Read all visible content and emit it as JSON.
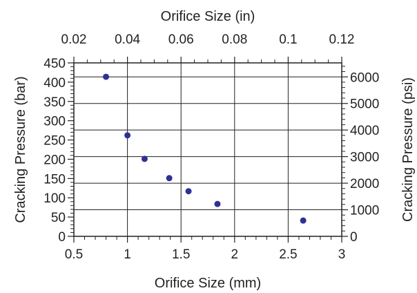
{
  "chart_data": {
    "type": "scatter",
    "title": "",
    "xlabel": "Orifice Size (mm)",
    "ylabel": "Cracking Pressure (bar)",
    "x2label": "Orifice Size (in)",
    "y2label": "Cracking Pressure (psi)",
    "xlim": [
      0.5,
      3
    ],
    "ylim": [
      0,
      450
    ],
    "x2lim": [
      0.02,
      0.12
    ],
    "y2lim": [
      0,
      6526.7
    ],
    "x_ticks": [
      0.5,
      1,
      1.5,
      2,
      2.5,
      3
    ],
    "x_tick_labels": [
      "0.5",
      "1",
      "1.5",
      "2",
      "2.5",
      "3"
    ],
    "y_ticks": [
      0,
      50,
      100,
      150,
      200,
      250,
      300,
      350,
      400,
      450
    ],
    "y_tick_labels": [
      "0",
      "50",
      "100",
      "150",
      "200",
      "250",
      "300",
      "350",
      "400",
      "450"
    ],
    "x2_ticks": [
      0.02,
      0.04,
      0.06,
      0.08,
      0.1,
      0.12
    ],
    "x2_tick_labels": [
      "0.02",
      "0.04",
      "0.06",
      "0.08",
      "0.1",
      "0.12"
    ],
    "y2_ticks": [
      0,
      1000,
      2000,
      3000,
      4000,
      5000,
      6000
    ],
    "y2_tick_labels": [
      "0",
      "1000",
      "2000",
      "3000",
      "4000",
      "5000",
      "6000"
    ],
    "gridlines": "major ticks of top and right axes",
    "legend": "none",
    "series": [
      {
        "x": [
          0.8,
          1.0,
          1.16,
          1.39,
          1.57,
          1.84,
          2.64
        ],
        "y": [
          414,
          262,
          201,
          151,
          117,
          84,
          41
        ]
      }
    ],
    "colors": {
      "marker": "#2e3192",
      "axes": "#231f20",
      "grid": "#231f20"
    }
  }
}
